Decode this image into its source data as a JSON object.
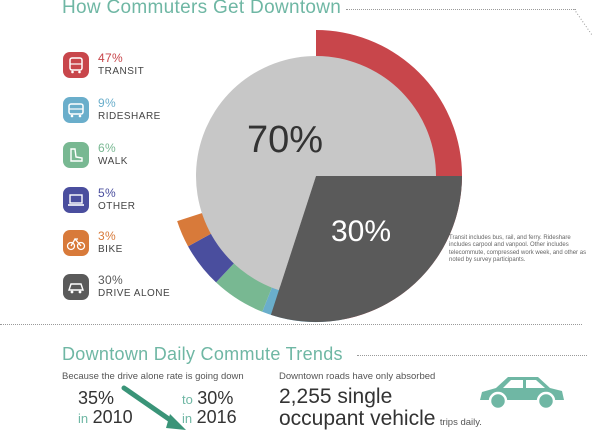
{
  "title": "How Commuters Get Downtown",
  "chart_data": {
    "type": "pie",
    "slices": [
      {
        "label": "TRANSIT",
        "pct": "47%",
        "value": 47,
        "color": "#c8464b"
      },
      {
        "label": "RIDESHARE",
        "pct": "9%",
        "value": 9,
        "color": "#6aaecb"
      },
      {
        "label": "WALK",
        "pct": "6%",
        "value": 6,
        "color": "#78b892"
      },
      {
        "label": "OTHER",
        "pct": "5%",
        "value": 5,
        "color": "#4a4e9e"
      },
      {
        "label": "BIKE",
        "pct": "3%",
        "value": 3,
        "color": "#d87a3a"
      },
      {
        "label": "DRIVE ALONE",
        "pct": "30%",
        "value": 30,
        "color": "#5a5a5a"
      }
    ],
    "inner": {
      "big_label": "70%",
      "big_value": 70,
      "big_color": "#c7c7c7",
      "small_label": "30%",
      "small_value": 30,
      "small_color": "#5a5a5a"
    }
  },
  "note": "Transit includes bus, rail, and ferry. Rideshare includes carpool and vanpool. Other includes telecommute, compressed work week, and other as noted by survey participants.",
  "trends": {
    "title": "Downtown Daily Commute Trends",
    "left_caption": "Because the drive alone rate is going down",
    "from_pct": "35%",
    "from_in": "in",
    "from_year": "2010",
    "to_word": "to",
    "to_pct": "30%",
    "to_in": "in",
    "to_year": "2016",
    "right_caption": "Downtown roads have only absorbed",
    "vehicles_count": "2,255 single",
    "vehicles_line2": "occupant vehicle",
    "trips": "trips daily."
  },
  "colors": {
    "accent": "#6fb7a4",
    "arrow": "#3a9478",
    "car": "#6fb7a4"
  },
  "icons": [
    "bus-icon",
    "car-icon",
    "walk-icon",
    "laptop-icon",
    "bike-icon",
    "car-icon"
  ]
}
